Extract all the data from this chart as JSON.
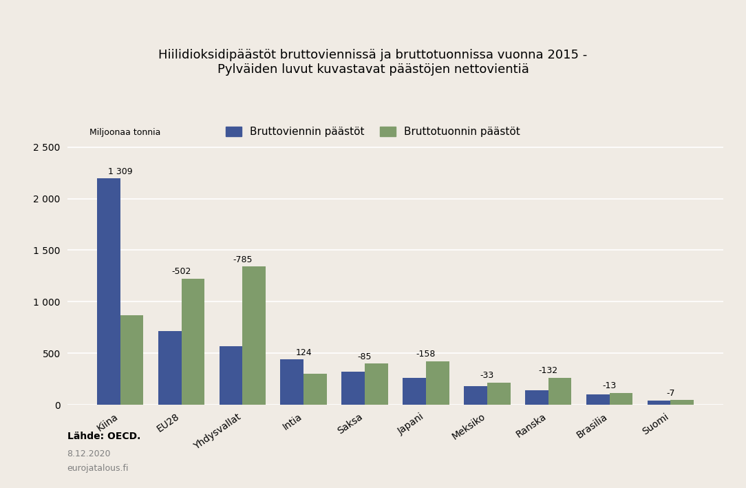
{
  "title": "Hiilidioksidipäästöt bruttoviennissä ja bruttotuonnissa vuonna 2015 -\nPylväiden luvut kuvastavat päästöjen nettovientiä",
  "ylabel": "Miljoonaa tonnia",
  "categories": [
    "Kiina",
    "EU28",
    "Yhdysvallat",
    "Intia",
    "Saksa",
    "Japani",
    "Meksiko",
    "Ranska",
    "Brasilia",
    "Suomi"
  ],
  "export_values": [
    2195,
    715,
    570,
    440,
    325,
    265,
    185,
    140,
    100,
    42
  ],
  "import_values": [
    870,
    1225,
    1340,
    305,
    400,
    425,
    215,
    265,
    115,
    48
  ],
  "net_labels": [
    "1 309",
    "-502",
    "-785",
    "124",
    "-85",
    "-158",
    "-33",
    "-132",
    "-13",
    "-7"
  ],
  "net_values": [
    1309,
    -502,
    -785,
    124,
    -85,
    "-158",
    "-33",
    "-132",
    "-13",
    "-7"
  ],
  "export_color": "#3f5696",
  "import_color": "#7f9c6b",
  "background_color": "#f0ebe4",
  "ylim": [
    0,
    2600
  ],
  "yticks": [
    0,
    500,
    1000,
    1500,
    2000,
    2500
  ],
  "legend_export": "Bruttoviennin päästöt",
  "legend_import": "Bruttotuonnin päästöt",
  "source_text": "Lähde: OECD.",
  "date_text": "8.12.2020",
  "website_text": "eurojatalous.fi"
}
